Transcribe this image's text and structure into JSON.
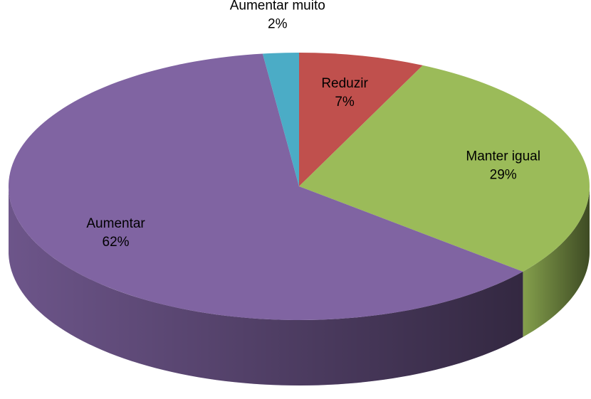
{
  "chart_data": {
    "type": "pie",
    "categories": [
      "Reduzir",
      "Manter igual",
      "Aumentar",
      "Aumentar muito"
    ],
    "values": [
      7,
      29,
      62,
      2
    ],
    "value_labels": [
      "7%",
      "29%",
      "62%",
      "2%"
    ],
    "colors": [
      "#c0504d",
      "#9bbb59",
      "#8064a2",
      "#4bacc6"
    ]
  }
}
